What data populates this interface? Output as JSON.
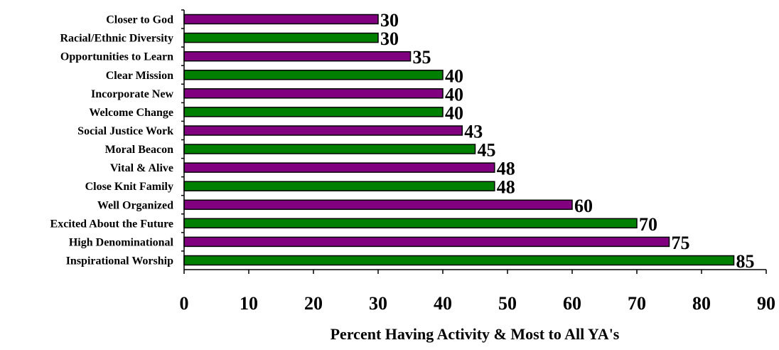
{
  "chart_data": {
    "type": "bar",
    "orientation": "horizontal",
    "categories": [
      "Closer to God",
      "Racial/Ethnic Diversity",
      "Opportunities to Learn",
      "Clear Mission",
      "Incorporate New",
      "Welcome Change",
      "Social Justice Work",
      "Moral Beacon",
      "Vital & Alive",
      "Close Knit Family",
      "Well Organized",
      "Excited About the Future",
      "High Denominational",
      "Inspirational Worship"
    ],
    "values": [
      30,
      30,
      35,
      40,
      40,
      40,
      43,
      45,
      48,
      48,
      60,
      70,
      75,
      85
    ],
    "data_labels": [
      "30",
      "30",
      "35",
      "40",
      "40",
      "40",
      "43",
      "45",
      "48",
      "48",
      "60",
      "70",
      "75",
      "85"
    ],
    "bar_colors": [
      "#800080",
      "#008000",
      "#800080",
      "#008000",
      "#800080",
      "#008000",
      "#800080",
      "#008000",
      "#800080",
      "#008000",
      "#800080",
      "#008000",
      "#800080",
      "#008000"
    ],
    "title": "",
    "xlabel": "Percent Having Activity & Most to All YA's",
    "ylabel": "",
    "xlim": [
      0,
      90
    ],
    "xticks": [
      "0",
      "10",
      "20",
      "30",
      "40",
      "50",
      "60",
      "70",
      "80",
      "90"
    ],
    "grid": false,
    "legend": "none"
  }
}
